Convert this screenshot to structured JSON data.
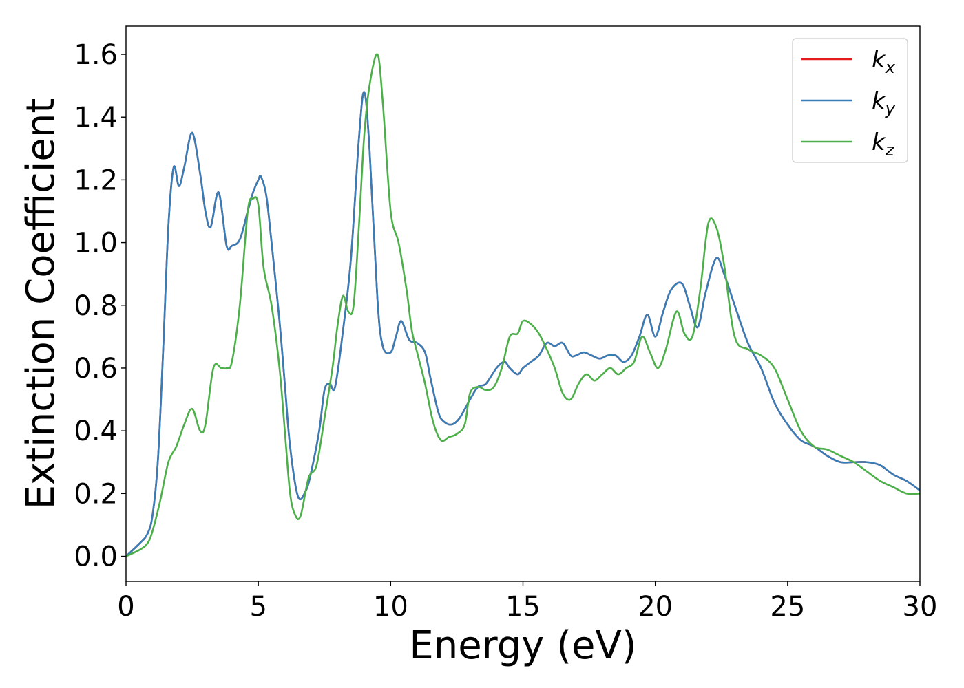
{
  "chart_data": {
    "type": "line",
    "title": "",
    "xlabel": "Energy (eV)",
    "ylabel": "Extinction Coefficient",
    "xlim": [
      0,
      30
    ],
    "ylim": [
      -0.08,
      1.69
    ],
    "xticks": [
      0,
      5,
      10,
      15,
      20,
      25,
      30
    ],
    "xtick_labels": [
      "0",
      "5",
      "10",
      "15",
      "20",
      "25",
      "30"
    ],
    "yticks": [
      0.0,
      0.2,
      0.4,
      0.6,
      0.8,
      1.0,
      1.2,
      1.4,
      1.6
    ],
    "ytick_labels": [
      "0.0",
      "0.2",
      "0.4",
      "0.6",
      "0.8",
      "1.0",
      "1.2",
      "1.4",
      "1.6"
    ],
    "grid": false,
    "legend": {
      "position": "top-right",
      "entries": [
        {
          "base": "k",
          "sub": "x",
          "color": "#e41a1c"
        },
        {
          "base": "k",
          "sub": "y",
          "color": "#377eb8"
        },
        {
          "base": "k",
          "sub": "z",
          "color": "#4daf4a"
        }
      ]
    },
    "series": [
      {
        "name": "k_x",
        "color": "#e41a1c",
        "x": [
          0,
          0.5,
          0.8,
          1.0,
          1.2,
          1.4,
          1.6,
          1.8,
          2.0,
          2.2,
          2.5,
          2.8,
          3.0,
          3.2,
          3.5,
          3.8,
          4.0,
          4.3,
          4.6,
          4.8,
          5.0,
          5.1,
          5.3,
          5.5,
          5.8,
          6.0,
          6.2,
          6.5,
          6.8,
          7.0,
          7.3,
          7.5,
          7.7,
          7.9,
          8.2,
          8.5,
          8.8,
          9.0,
          9.2,
          9.5,
          9.7,
          10.0,
          10.2,
          10.4,
          10.7,
          11.0,
          11.3,
          11.5,
          11.8,
          12.0,
          12.3,
          12.6,
          13.0,
          13.3,
          13.6,
          14.0,
          14.3,
          14.5,
          14.8,
          15.0,
          15.3,
          15.6,
          15.9,
          16.2,
          16.5,
          16.8,
          17.0,
          17.3,
          17.6,
          17.9,
          18.2,
          18.5,
          18.8,
          19.1,
          19.4,
          19.7,
          20.0,
          20.3,
          20.6,
          21.0,
          21.3,
          21.6,
          21.9,
          22.3,
          22.6,
          23.0,
          23.5,
          24.0,
          24.5,
          25.0,
          25.5,
          26.0,
          26.5,
          27.0,
          27.5,
          28.0,
          28.5,
          29.0,
          29.5,
          30.0
        ],
        "values": [
          0.0,
          0.04,
          0.07,
          0.13,
          0.3,
          0.65,
          1.05,
          1.24,
          1.18,
          1.24,
          1.35,
          1.22,
          1.1,
          1.05,
          1.16,
          0.99,
          0.99,
          1.01,
          1.1,
          1.16,
          1.2,
          1.21,
          1.15,
          1.0,
          0.75,
          0.55,
          0.35,
          0.19,
          0.21,
          0.27,
          0.4,
          0.53,
          0.55,
          0.54,
          0.72,
          0.95,
          1.33,
          1.48,
          1.3,
          0.82,
          0.67,
          0.65,
          0.7,
          0.75,
          0.69,
          0.68,
          0.65,
          0.57,
          0.46,
          0.43,
          0.42,
          0.44,
          0.5,
          0.54,
          0.55,
          0.6,
          0.62,
          0.6,
          0.58,
          0.6,
          0.62,
          0.64,
          0.68,
          0.67,
          0.68,
          0.64,
          0.64,
          0.65,
          0.64,
          0.63,
          0.64,
          0.64,
          0.62,
          0.64,
          0.7,
          0.77,
          0.7,
          0.78,
          0.85,
          0.87,
          0.8,
          0.73,
          0.84,
          0.95,
          0.9,
          0.8,
          0.68,
          0.6,
          0.49,
          0.42,
          0.37,
          0.35,
          0.32,
          0.3,
          0.3,
          0.3,
          0.29,
          0.26,
          0.24,
          0.21
        ]
      },
      {
        "name": "k_y",
        "color": "#377eb8",
        "x": [
          0,
          0.5,
          0.8,
          1.0,
          1.2,
          1.4,
          1.6,
          1.8,
          2.0,
          2.2,
          2.5,
          2.8,
          3.0,
          3.2,
          3.5,
          3.8,
          4.0,
          4.3,
          4.6,
          4.8,
          5.0,
          5.1,
          5.3,
          5.5,
          5.8,
          6.0,
          6.2,
          6.5,
          6.8,
          7.0,
          7.3,
          7.5,
          7.7,
          7.9,
          8.2,
          8.5,
          8.8,
          9.0,
          9.2,
          9.5,
          9.7,
          10.0,
          10.2,
          10.4,
          10.7,
          11.0,
          11.3,
          11.5,
          11.8,
          12.0,
          12.3,
          12.6,
          13.0,
          13.3,
          13.6,
          14.0,
          14.3,
          14.5,
          14.8,
          15.0,
          15.3,
          15.6,
          15.9,
          16.2,
          16.5,
          16.8,
          17.0,
          17.3,
          17.6,
          17.9,
          18.2,
          18.5,
          18.8,
          19.1,
          19.4,
          19.7,
          20.0,
          20.3,
          20.6,
          21.0,
          21.3,
          21.6,
          21.9,
          22.3,
          22.6,
          23.0,
          23.5,
          24.0,
          24.5,
          25.0,
          25.5,
          26.0,
          26.5,
          27.0,
          27.5,
          28.0,
          28.5,
          29.0,
          29.5,
          30.0
        ],
        "values": [
          0.0,
          0.04,
          0.07,
          0.13,
          0.3,
          0.65,
          1.05,
          1.24,
          1.18,
          1.24,
          1.35,
          1.22,
          1.1,
          1.05,
          1.16,
          0.99,
          0.99,
          1.01,
          1.1,
          1.16,
          1.2,
          1.21,
          1.15,
          1.0,
          0.75,
          0.55,
          0.35,
          0.19,
          0.21,
          0.27,
          0.4,
          0.53,
          0.55,
          0.54,
          0.72,
          0.95,
          1.33,
          1.48,
          1.3,
          0.82,
          0.67,
          0.65,
          0.7,
          0.75,
          0.69,
          0.68,
          0.65,
          0.57,
          0.46,
          0.43,
          0.42,
          0.44,
          0.5,
          0.54,
          0.55,
          0.6,
          0.62,
          0.6,
          0.58,
          0.6,
          0.62,
          0.64,
          0.68,
          0.67,
          0.68,
          0.64,
          0.64,
          0.65,
          0.64,
          0.63,
          0.64,
          0.64,
          0.62,
          0.64,
          0.7,
          0.77,
          0.7,
          0.78,
          0.85,
          0.87,
          0.8,
          0.73,
          0.84,
          0.95,
          0.9,
          0.8,
          0.68,
          0.6,
          0.49,
          0.42,
          0.37,
          0.35,
          0.32,
          0.3,
          0.3,
          0.3,
          0.29,
          0.26,
          0.24,
          0.21
        ]
      },
      {
        "name": "k_z",
        "color": "#4daf4a",
        "x": [
          0,
          0.5,
          0.8,
          1.0,
          1.3,
          1.6,
          1.9,
          2.2,
          2.5,
          2.8,
          3.0,
          3.3,
          3.6,
          3.8,
          4.0,
          4.3,
          4.6,
          4.8,
          5.0,
          5.2,
          5.5,
          5.8,
          6.0,
          6.2,
          6.4,
          6.6,
          6.9,
          7.2,
          7.5,
          7.8,
          8.0,
          8.2,
          8.4,
          8.6,
          8.8,
          9.0,
          9.2,
          9.5,
          9.7,
          10.0,
          10.3,
          10.6,
          10.8,
          11.0,
          11.3,
          11.6,
          11.9,
          12.2,
          12.5,
          12.8,
          13.0,
          13.3,
          13.6,
          13.9,
          14.2,
          14.5,
          14.8,
          15.0,
          15.3,
          15.6,
          15.9,
          16.2,
          16.5,
          16.8,
          17.1,
          17.4,
          17.7,
          18.0,
          18.3,
          18.6,
          18.9,
          19.2,
          19.5,
          19.8,
          20.1,
          20.4,
          20.8,
          21.1,
          21.4,
          21.7,
          22.0,
          22.3,
          22.6,
          23.0,
          23.5,
          24.0,
          24.5,
          25.0,
          25.5,
          26.0,
          26.5,
          27.0,
          27.5,
          28.0,
          28.5,
          29.0,
          29.5,
          30.0
        ],
        "values": [
          0.0,
          0.02,
          0.04,
          0.08,
          0.18,
          0.3,
          0.35,
          0.42,
          0.47,
          0.4,
          0.42,
          0.6,
          0.6,
          0.6,
          0.62,
          0.8,
          1.1,
          1.14,
          1.12,
          0.92,
          0.8,
          0.6,
          0.4,
          0.2,
          0.13,
          0.13,
          0.25,
          0.29,
          0.44,
          0.6,
          0.74,
          0.83,
          0.78,
          0.8,
          1.05,
          1.34,
          1.5,
          1.6,
          1.45,
          1.1,
          1.0,
          0.85,
          0.72,
          0.65,
          0.55,
          0.43,
          0.37,
          0.38,
          0.39,
          0.42,
          0.52,
          0.54,
          0.53,
          0.54,
          0.6,
          0.7,
          0.71,
          0.75,
          0.74,
          0.71,
          0.66,
          0.6,
          0.52,
          0.5,
          0.55,
          0.58,
          0.56,
          0.58,
          0.6,
          0.58,
          0.6,
          0.62,
          0.7,
          0.65,
          0.6,
          0.66,
          0.78,
          0.71,
          0.7,
          0.85,
          1.06,
          1.05,
          0.93,
          0.7,
          0.66,
          0.64,
          0.6,
          0.5,
          0.4,
          0.35,
          0.34,
          0.32,
          0.3,
          0.27,
          0.24,
          0.22,
          0.2,
          0.2
        ]
      }
    ]
  }
}
